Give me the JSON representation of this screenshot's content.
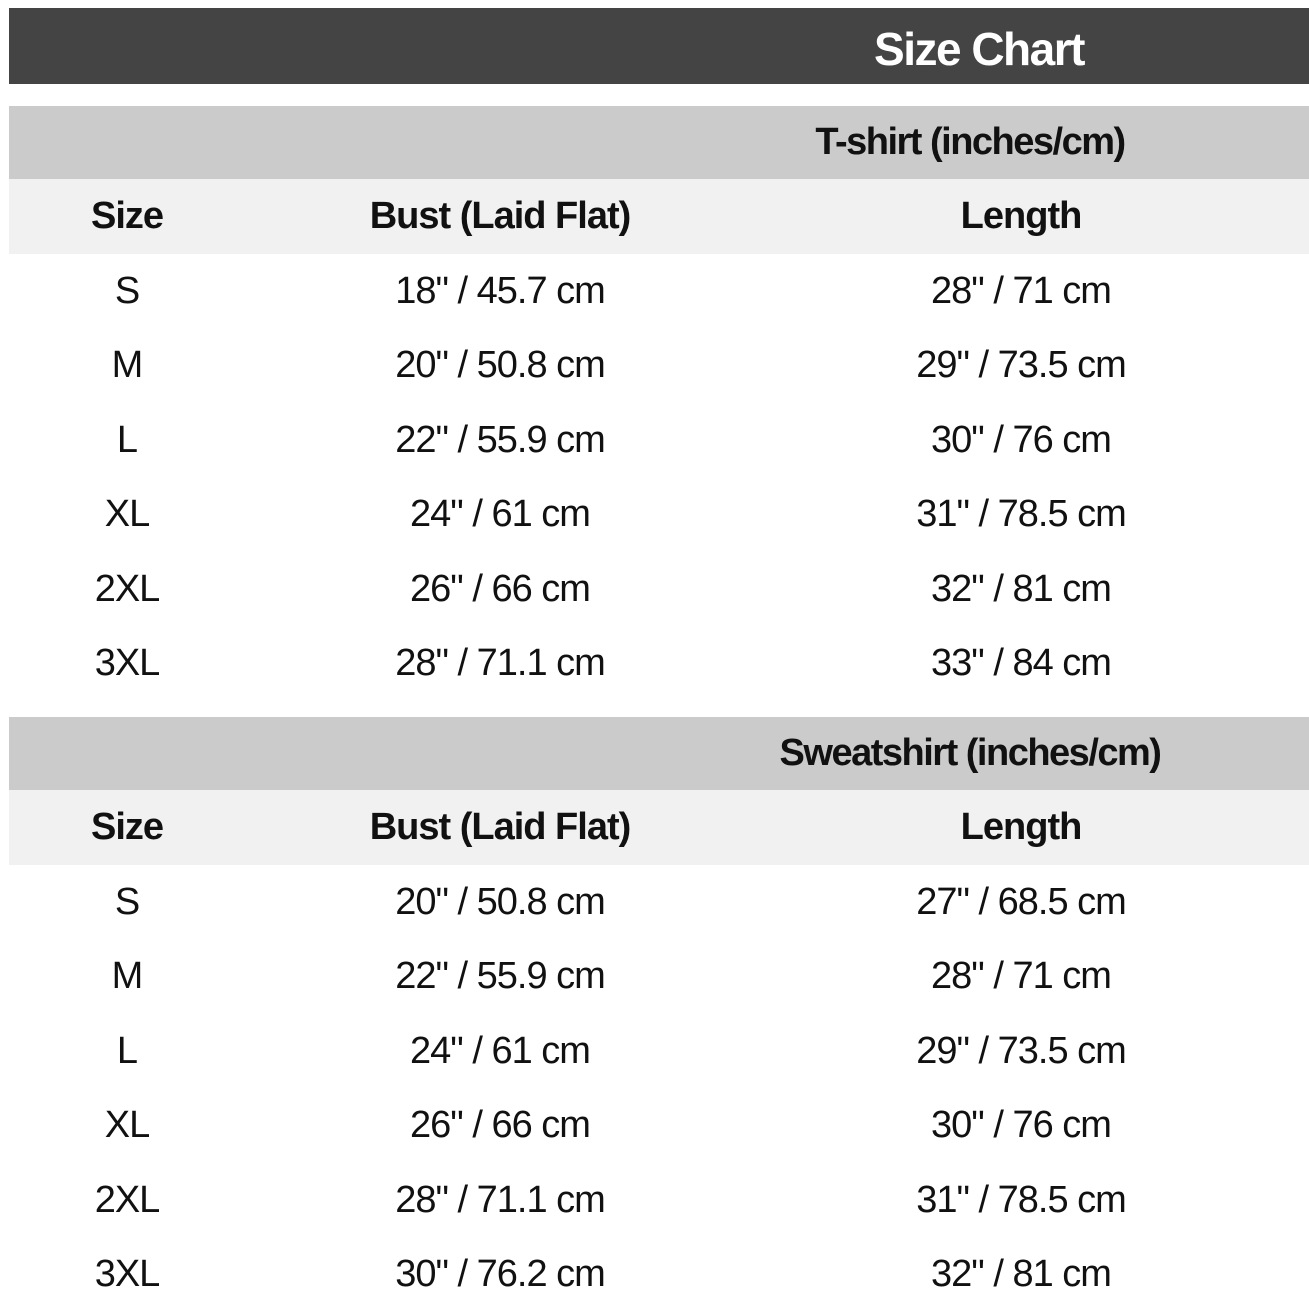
{
  "title": "Size Chart",
  "colors": {
    "banner": "#444444",
    "section_header": "#cbcbcb",
    "column_header": "#f1f1f1"
  },
  "columns": [
    "Size",
    "Bust (Laid Flat)",
    "Length"
  ],
  "tshirt": {
    "title": "T-shirt (inches/cm)",
    "rows": [
      [
        "S",
        "18\" / 45.7 cm",
        "28\" / 71 cm"
      ],
      [
        "M",
        "20\" / 50.8 cm",
        "29\" / 73.5 cm"
      ],
      [
        "L",
        "22\" / 55.9 cm",
        "30\" / 76 cm"
      ],
      [
        "XL",
        "24\" / 61 cm",
        "31\" / 78.5 cm"
      ],
      [
        "2XL",
        "26\" / 66 cm",
        "32\" / 81 cm"
      ],
      [
        "3XL",
        "28\" / 71.1 cm",
        "33\" / 84 cm"
      ]
    ]
  },
  "sweatshirt": {
    "title": "Sweatshirt (inches/cm)",
    "rows": [
      [
        "S",
        "20\" / 50.8 cm",
        "27\" / 68.5 cm"
      ],
      [
        "M",
        "22\" / 55.9 cm",
        "28\" / 71 cm"
      ],
      [
        "L",
        "24\" / 61 cm",
        "29\" / 73.5 cm"
      ],
      [
        "XL",
        "26\" / 66 cm",
        "30\" / 76 cm"
      ],
      [
        "2XL",
        "28\" / 71.1 cm",
        "31\" / 78.5 cm"
      ],
      [
        "3XL",
        "30\" / 76.2 cm",
        "32\" / 81 cm"
      ]
    ]
  }
}
